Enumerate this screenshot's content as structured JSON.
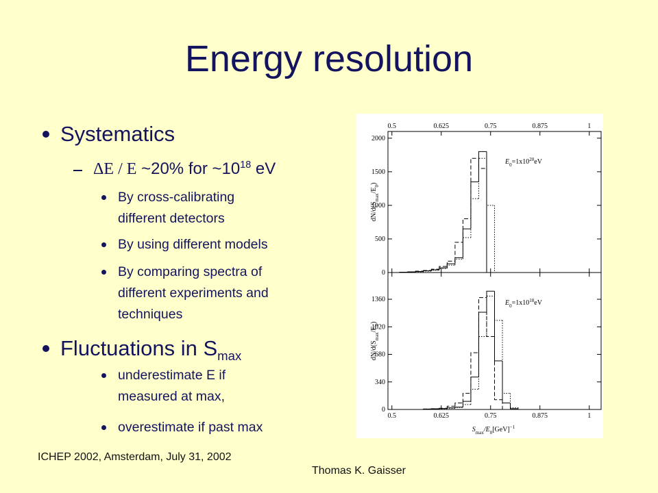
{
  "slide": {
    "title": "Energy resolution",
    "bullet1": "Systematics",
    "dash_item": {
      "symbol": "ΔE / E",
      "text": "~20% for ~10",
      "exponent": "18",
      "unit": "eV"
    },
    "items1": [
      [
        "By cross-calibrating",
        "different detectors"
      ],
      [
        "By using different models"
      ],
      [
        "By comparing spectra of",
        "different experiments and",
        "techniques"
      ]
    ],
    "bullet2": {
      "text": "Fluctuations in S",
      "sub": "max"
    },
    "items2": [
      [
        " underestimate E if",
        "measured at max,"
      ],
      [
        " overestimate if  past max"
      ]
    ]
  },
  "footer": {
    "left": "ICHEP 2002, Amsterdam, July 31, 2002",
    "right": "Thomas K. Gaisser"
  },
  "chart_data": [
    {
      "type": "histogram",
      "xtick_side": "top",
      "ylabel": {
        "a": "dN/d(S",
        "a_sub": "max",
        "b": "/E",
        "b_sub": "0",
        "c": ")"
      },
      "annotation": {
        "e": "E",
        "e_sub": "0",
        "text": "=1x10",
        "exp": "20",
        "unit": "eV"
      },
      "bins": [
        0.5,
        0.52,
        0.54,
        0.56,
        0.58,
        0.6,
        0.62,
        0.64,
        0.66,
        0.68,
        0.7,
        0.72,
        0.74,
        0.76,
        0.78,
        0.8,
        0.82
      ],
      "series": [
        {
          "color": "#000000",
          "dash": "solid",
          "values": [
            0,
            5,
            10,
            15,
            25,
            40,
            70,
            130,
            220,
            650,
            1350,
            1800,
            0,
            0,
            0,
            0
          ]
        },
        {
          "color": "#000000",
          "dash": "dashed",
          "values": [
            0,
            5,
            10,
            20,
            30,
            50,
            90,
            170,
            450,
            800,
            1700,
            1550,
            0,
            0,
            0,
            0
          ]
        },
        {
          "color": "#000000",
          "dash": "dotted",
          "values": [
            0,
            5,
            10,
            12,
            20,
            35,
            60,
            110,
            200,
            520,
            1100,
            1700,
            1000,
            0,
            0,
            0
          ]
        }
      ],
      "xlim": [
        0.49,
        1.03
      ],
      "ylim": [
        0,
        2100
      ],
      "xticks": [
        0.5,
        0.625,
        0.75,
        0.875,
        1
      ],
      "yticks": [
        0,
        500,
        1000,
        1500,
        2000
      ]
    },
    {
      "type": "histogram",
      "xtick_side": "bottom",
      "ylabel": {
        "a": "dN/d(S",
        "a_sub": "max",
        "b": "/E",
        "b_sub": "0",
        "c": ")"
      },
      "annotation": {
        "e": "E",
        "e_sub": "0",
        "text": "=1x10",
        "exp": "18",
        "unit": "eV"
      },
      "xlabel": {
        "s": "S",
        "s_sub": "max",
        "e": "/E",
        "e_sub": "0",
        "unit": "[GeV]",
        "unit_sup": "−1"
      },
      "bins": [
        0.5,
        0.52,
        0.54,
        0.56,
        0.58,
        0.6,
        0.62,
        0.64,
        0.66,
        0.68,
        0.7,
        0.72,
        0.74,
        0.76,
        0.78,
        0.8,
        0.82
      ],
      "series": [
        {
          "color": "#000000",
          "dash": "solid",
          "values": [
            0,
            0,
            0,
            0,
            5,
            8,
            12,
            20,
            30,
            100,
            400,
            1200,
            1460,
            600,
            80,
            10
          ]
        },
        {
          "color": "#000000",
          "dash": "dashed",
          "values": [
            0,
            0,
            0,
            0,
            5,
            10,
            15,
            40,
            80,
            200,
            700,
            1380,
            900,
            120,
            0,
            0
          ]
        },
        {
          "color": "#000000",
          "dash": "dotted",
          "values": [
            0,
            0,
            0,
            0,
            3,
            6,
            10,
            15,
            25,
            60,
            250,
            900,
            1400,
            1100,
            200,
            20
          ]
        }
      ],
      "xlim": [
        0.49,
        1.03
      ],
      "ylim": [
        0,
        1690
      ],
      "xticks": [
        0.5,
        0.625,
        0.75,
        0.875,
        1
      ],
      "yticks": [
        0,
        340,
        680,
        1020,
        1360
      ]
    }
  ]
}
